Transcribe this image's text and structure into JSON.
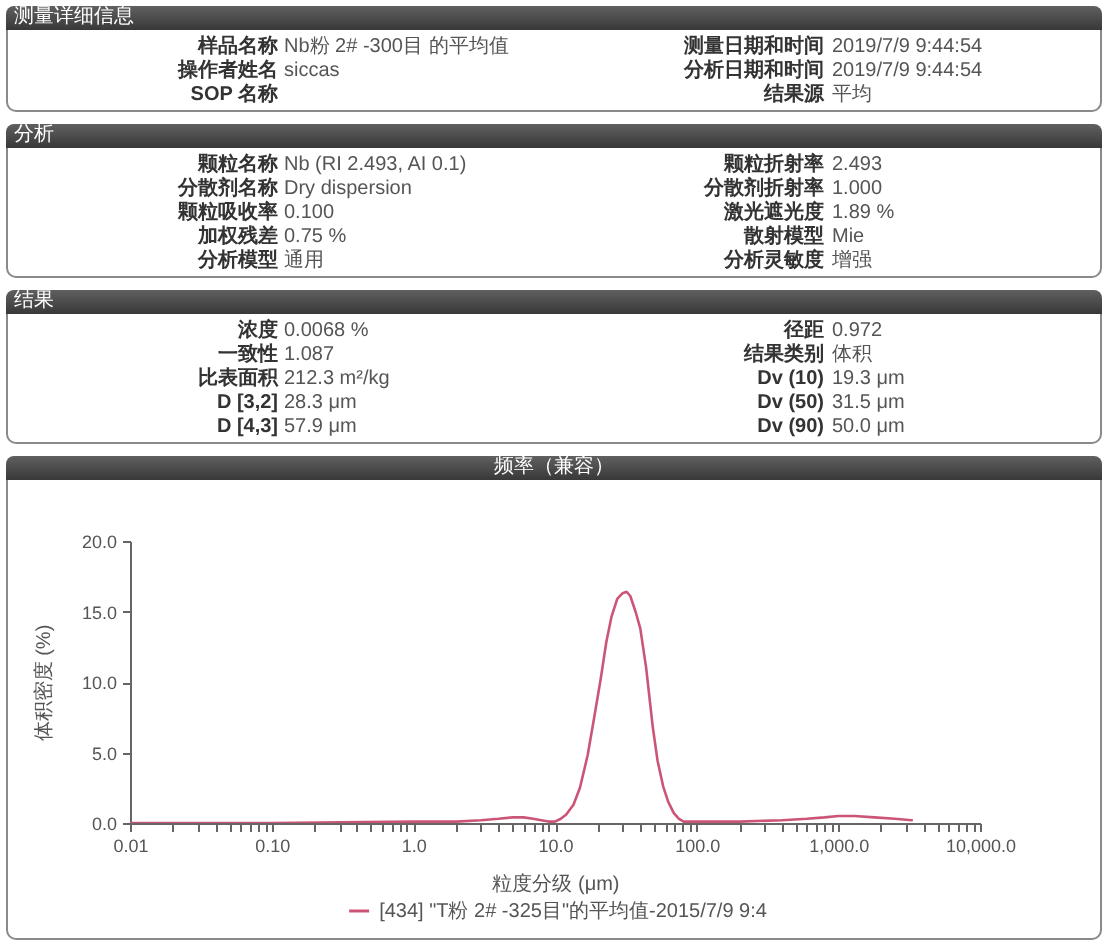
{
  "chart_data": [
    {
      "type": "other",
      "title": "测量详细信息",
      "annotations": [
        "样品名称",
        "Nb粉 2# -300目 的平均值",
        "操作者姓名",
        "siccas",
        "SOP 名称",
        null,
        "测量日期和时间",
        "2019/7/9 9:44:54",
        "分析日期和时间",
        "2019/7/9 9:44:54",
        "结果源",
        "平均"
      ]
    },
    {
      "type": "other",
      "title": "分析",
      "annotations": [
        "颗粒名称",
        "Nb (RI 2.493, AI 0.1)",
        "分散剂名称",
        "Dry dispersion",
        "颗粒吸收率",
        "0.100",
        "加权残差",
        "0.75 %",
        "分析模型",
        "通用",
        "颗粒折射率",
        "2.493",
        "分散剂折射率",
        "1.000",
        "激光遮光度",
        "1.89 %",
        "散射模型",
        "Mie",
        "分析灵敏度",
        "增强"
      ]
    },
    {
      "type": "other",
      "title": "结果",
      "annotations": [
        "浓度",
        "0.0068 %",
        "一致性",
        "1.087",
        "比表面积",
        "212.3 m²/kg",
        "D [3,2]",
        "28.3 μm",
        "D [4,3]",
        "57.9 μm",
        "径距",
        "0.972",
        "结果类别",
        "体积",
        "Dv (10)",
        "19.3 μm",
        "Dv (50)",
        "31.5 μm",
        "Dv (90)",
        "50.0 μm"
      ]
    },
    {
      "type": "line",
      "title": "频率（兼容）",
      "xlabel": "粒度分级 (μm)",
      "ylabel": "体积密度 (%)",
      "log": "x",
      "grid": false,
      "legend": "bottom",
      "marker": "none",
      "line_style": "solid",
      "xlim": [
        0.01,
        10000
      ],
      "xticks": [
        0.01,
        {
          "value": 0.02,
          "label": null
        },
        {
          "value": 0.03,
          "label": null
        },
        {
          "value": 0.04,
          "label": null
        },
        {
          "value": 0.05,
          "label": null
        },
        {
          "value": 0.06,
          "label": null
        },
        {
          "value": 0.07,
          "label": null
        },
        {
          "value": 0.08,
          "label": null
        },
        {
          "value": 0.09,
          "label": null
        },
        {
          "value": 0.1,
          "label": "0.10"
        },
        {
          "value": 0.2,
          "label": null
        },
        {
          "value": 0.3,
          "label": null
        },
        {
          "value": 0.4,
          "label": null
        },
        {
          "value": 0.5,
          "label": null
        },
        {
          "value": 0.6,
          "label": null
        },
        {
          "value": 0.7,
          "label": null
        },
        {
          "value": 0.8,
          "label": null
        },
        {
          "value": 0.9,
          "label": null
        },
        {
          "value": 1,
          "label": "1.0"
        },
        {
          "value": 2,
          "label": null
        },
        {
          "value": 3,
          "label": null
        },
        {
          "value": 4,
          "label": null
        },
        {
          "value": 5,
          "label": null
        },
        {
          "value": 6,
          "label": null
        },
        {
          "value": 7,
          "label": null
        },
        {
          "value": 8,
          "label": null
        },
        {
          "value": 9,
          "label": null
        },
        {
          "value": 10,
          "label": "10.0"
        },
        {
          "value": 20,
          "label": null
        },
        {
          "value": 30,
          "label": null
        },
        {
          "value": 40,
          "label": null
        },
        {
          "value": 50,
          "label": null
        },
        {
          "value": 60,
          "label": null
        },
        {
          "value": 70,
          "label": null
        },
        {
          "value": 80,
          "label": null
        },
        {
          "value": 90,
          "label": null
        },
        {
          "value": 100,
          "label": "100.0"
        },
        {
          "value": 200,
          "label": null
        },
        {
          "value": 300,
          "label": null
        },
        {
          "value": 400,
          "label": null
        },
        {
          "value": 500,
          "label": null
        },
        {
          "value": 600,
          "label": null
        },
        {
          "value": 700,
          "label": null
        },
        {
          "value": 800,
          "label": null
        },
        {
          "value": 900,
          "label": null
        },
        {
          "value": 1000,
          "label": "1,000.0"
        },
        {
          "value": 2000,
          "label": null
        },
        {
          "value": 3000,
          "label": null
        },
        {
          "value": 4000,
          "label": null
        },
        {
          "value": 5000,
          "label": null
        },
        {
          "value": 6000,
          "label": null
        },
        {
          "value": 7000,
          "label": null
        },
        {
          "value": 8000,
          "label": null
        },
        {
          "value": 9000,
          "label": null
        },
        {
          "value": 10000,
          "label": "10,000.0"
        }
      ],
      "ylim": [
        0,
        20
      ],
      "yticks": [
        {
          "value": 0,
          "label": "0.0"
        },
        {
          "value": 5,
          "label": "5.0"
        },
        {
          "value": 10,
          "label": "10.0"
        },
        {
          "value": 15,
          "label": "15.0"
        },
        {
          "value": 20,
          "label": "20.0"
        }
      ],
      "x": [
        0.01,
        0.1,
        1,
        2,
        3,
        4,
        5,
        6,
        7,
        8,
        9,
        10,
        11,
        12,
        13.5,
        15,
        17,
        19,
        21,
        23,
        25,
        27.5,
        30,
        32,
        34,
        37,
        40,
        44,
        49,
        53,
        58,
        63,
        69,
        75,
        81,
        100,
        200,
        400,
        600,
        800,
        1000,
        1300,
        1800,
        2500,
        3300
      ],
      "series": [
        {
          "name": "[434] \"T粉 2# -325目\"的平均值-2015/7/9 9:4",
          "color": "#cc5577",
          "values": [
            0,
            0,
            0.1,
            0.1,
            0.2,
            0.3,
            0.4,
            0.4,
            0.3,
            0.2,
            0.1,
            0.1,
            0.3,
            0.6,
            1.3,
            2.5,
            4.8,
            7.6,
            10.2,
            12.8,
            14.6,
            15.9,
            16.3,
            16.4,
            16.1,
            15.0,
            13.8,
            11.0,
            6.8,
            4.4,
            2.6,
            1.5,
            0.7,
            0.3,
            0.1,
            0.1,
            0.1,
            0.2,
            0.3,
            0.4,
            0.5,
            0.5,
            0.4,
            0.3,
            0.2
          ]
        }
      ]
    }
  ]
}
